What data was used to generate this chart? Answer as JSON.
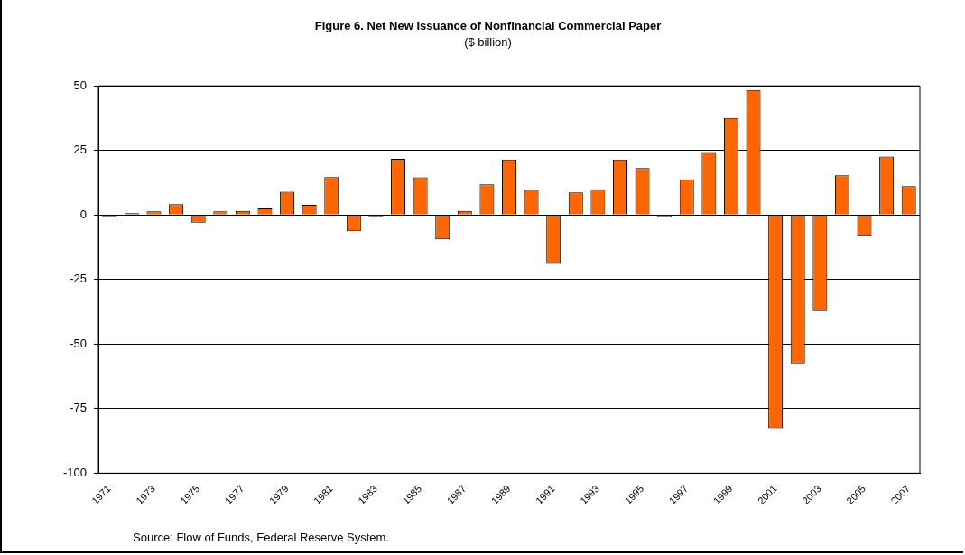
{
  "chart_data": {
    "type": "bar",
    "title": "Figure 6. Net New Issuance of Nonfinancial Commercial Paper",
    "subtitle": "($ billion)",
    "categories": [
      "1971",
      null,
      "1973",
      null,
      "1975",
      null,
      "1977",
      null,
      "1979",
      null,
      "1981",
      null,
      "1983",
      null,
      "1985",
      null,
      "1987",
      null,
      "1989",
      null,
      "1991",
      null,
      "1993",
      null,
      "1995",
      null,
      "1997",
      null,
      "1999",
      null,
      "2001",
      null,
      "2003",
      null,
      "2005",
      null,
      "2007"
    ],
    "values": [
      -1,
      0.7,
      1.4,
      4.2,
      -3,
      1.4,
      1.6,
      2.5,
      9,
      3.9,
      14.7,
      -6.3,
      -1,
      21.8,
      14.6,
      -9.4,
      1.6,
      11.9,
      21.5,
      9.7,
      -18.6,
      8.7,
      10,
      21.5,
      18.2,
      -1,
      13.8,
      24.4,
      37.6,
      48.4,
      -82.6,
      -57.5,
      -37.2,
      15.4,
      -8,
      22.6,
      11.2
    ],
    "color": "#ff6600",
    "ylim": [
      -100,
      50
    ],
    "yticks": [
      -100,
      -75,
      -50,
      -25,
      0,
      25,
      50
    ],
    "grid": "y",
    "legend": false,
    "annotations": [
      "Source: Flow of Funds, Federal Reserve System."
    ]
  }
}
